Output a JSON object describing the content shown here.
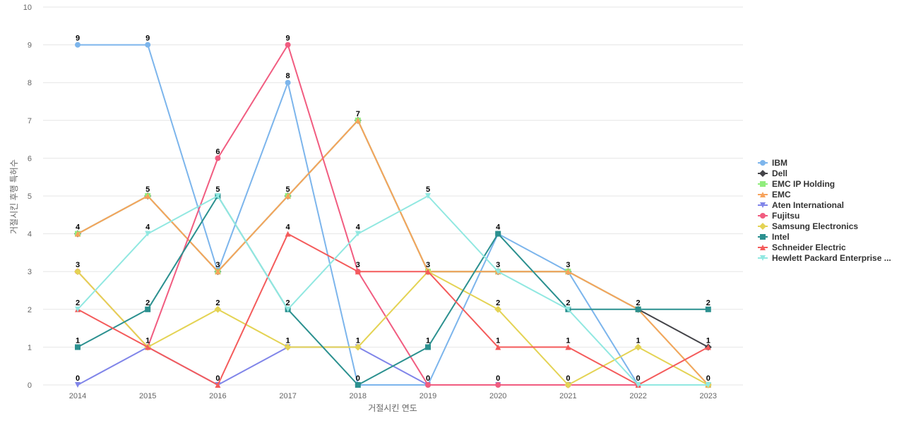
{
  "chart_data": {
    "type": "line",
    "xlabel": "거절시킨 연도",
    "ylabel": "거절시킨 후행 특허수",
    "ylim": [
      0,
      10
    ],
    "yticks": [
      0,
      1,
      2,
      3,
      4,
      5,
      6,
      7,
      8,
      9,
      10
    ],
    "categories": [
      "2014",
      "2015",
      "2016",
      "2017",
      "2018",
      "2019",
      "2020",
      "2021",
      "2022",
      "2023"
    ],
    "legend_position": "right",
    "grid": true,
    "series": [
      {
        "name": "IBM",
        "color": "#7cb5ec",
        "marker": "circle",
        "values": [
          9,
          9,
          3,
          8,
          0,
          0,
          4,
          3,
          0,
          0
        ]
      },
      {
        "name": "Dell",
        "color": "#434348",
        "marker": "diamond",
        "values": [
          4,
          5,
          3,
          5,
          7,
          3,
          3,
          3,
          2,
          1
        ]
      },
      {
        "name": "EMC IP Holding",
        "color": "#90ed7d",
        "marker": "square",
        "values": [
          4,
          5,
          3,
          5,
          7,
          3,
          3,
          3,
          2,
          0
        ]
      },
      {
        "name": "EMC",
        "color": "#f7a35c",
        "marker": "triangle",
        "values": [
          4,
          5,
          3,
          5,
          7,
          3,
          3,
          3,
          2,
          0
        ]
      },
      {
        "name": "Aten International",
        "color": "#8085e9",
        "marker": "triangle-down",
        "values": [
          0,
          1,
          0,
          1,
          1,
          0,
          0,
          0,
          0,
          0
        ]
      },
      {
        "name": "Fujitsu",
        "color": "#f15c80",
        "marker": "circle",
        "values": [
          3,
          1,
          6,
          9,
          3,
          0,
          0,
          0,
          0,
          0
        ]
      },
      {
        "name": "Samsung Electronics",
        "color": "#e4d354",
        "marker": "diamond",
        "values": [
          3,
          1,
          2,
          1,
          1,
          3,
          2,
          0,
          1,
          0
        ]
      },
      {
        "name": "Intel",
        "color": "#2b908f",
        "marker": "square",
        "values": [
          1,
          2,
          5,
          2,
          0,
          1,
          4,
          2,
          2,
          2
        ]
      },
      {
        "name": "Schneider Electric",
        "color": "#f45b5b",
        "marker": "triangle",
        "values": [
          2,
          1,
          0,
          4,
          3,
          3,
          1,
          1,
          0,
          1
        ]
      },
      {
        "name": "Hewlett Packard Enterprise ...",
        "color": "#91e8e1",
        "marker": "triangle-down",
        "values": [
          2,
          4,
          5,
          2,
          4,
          5,
          3,
          2,
          0,
          0
        ]
      }
    ],
    "data_labels": [
      {
        "x": "2014",
        "value": 9
      },
      {
        "x": "2014",
        "value": 4
      },
      {
        "x": "2014",
        "value": 3
      },
      {
        "x": "2014",
        "value": 2
      },
      {
        "x": "2014",
        "value": 1
      },
      {
        "x": "2014",
        "value": 0
      },
      {
        "x": "2015",
        "value": 9
      },
      {
        "x": "2015",
        "value": 5
      },
      {
        "x": "2015",
        "value": 4
      },
      {
        "x": "2015",
        "value": 2
      },
      {
        "x": "2015",
        "value": 1
      },
      {
        "x": "2016",
        "value": 6
      },
      {
        "x": "2016",
        "value": 5
      },
      {
        "x": "2016",
        "value": 3
      },
      {
        "x": "2016",
        "value": 2
      },
      {
        "x": "2016",
        "value": 0
      },
      {
        "x": "2017",
        "value": 9
      },
      {
        "x": "2017",
        "value": 8
      },
      {
        "x": "2017",
        "value": 5
      },
      {
        "x": "2017",
        "value": 4
      },
      {
        "x": "2017",
        "value": 2
      },
      {
        "x": "2017",
        "value": 1
      },
      {
        "x": "2018",
        "value": 7
      },
      {
        "x": "2018",
        "value": 4
      },
      {
        "x": "2018",
        "value": 3
      },
      {
        "x": "2018",
        "value": 1
      },
      {
        "x": "2018",
        "value": 0
      },
      {
        "x": "2019",
        "value": 5
      },
      {
        "x": "2019",
        "value": 3
      },
      {
        "x": "2019",
        "value": 1
      },
      {
        "x": "2019",
        "value": 0
      },
      {
        "x": "2020",
        "value": 4
      },
      {
        "x": "2020",
        "value": 3
      },
      {
        "x": "2020",
        "value": 2
      },
      {
        "x": "2020",
        "value": 1
      },
      {
        "x": "2020",
        "value": 0
      },
      {
        "x": "2021",
        "value": 3
      },
      {
        "x": "2021",
        "value": 2
      },
      {
        "x": "2021",
        "value": 1
      },
      {
        "x": "2021",
        "value": 0
      },
      {
        "x": "2022",
        "value": 2
      },
      {
        "x": "2022",
        "value": 1
      },
      {
        "x": "2022",
        "value": 0
      },
      {
        "x": "2023",
        "value": 2
      },
      {
        "x": "2023",
        "value": 1
      },
      {
        "x": "2023",
        "value": 0
      }
    ]
  }
}
